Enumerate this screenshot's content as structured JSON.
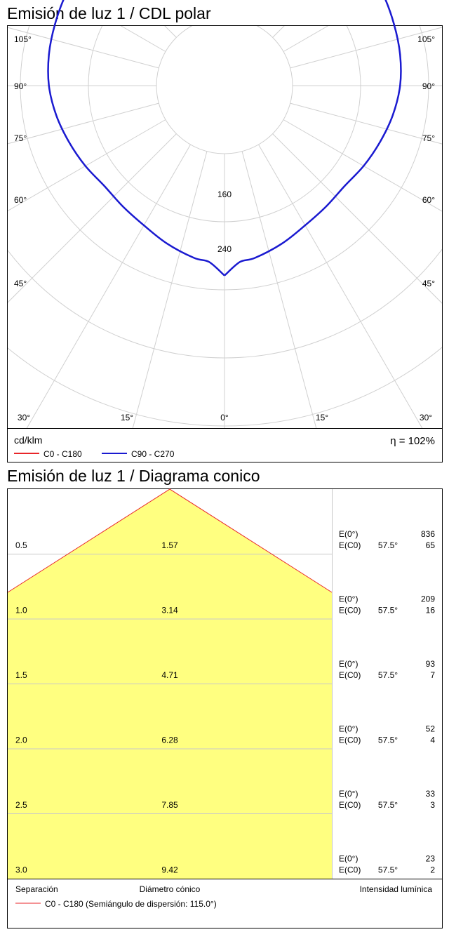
{
  "polar": {
    "title": "Emisión de luz 1 / CDL polar",
    "unit": "cd/klm",
    "efficiency": "η = 102%",
    "legend": [
      {
        "name": "C0 - C180",
        "color": "#e8262a"
      },
      {
        "name": "C90 - C270",
        "color": "#1a1ad0"
      }
    ]
  },
  "cone": {
    "title": "Emisión de luz 1 / Diagrama conico",
    "footer": {
      "separation": "Separación",
      "diameter": "Diámetro cónico",
      "intensity": "Intensidad lumínica",
      "legend": "C0 - C180 (Semiángulo de dispersión: 115.0°)"
    },
    "colors": {
      "fill": "#ffff80",
      "outline": "#e8262a",
      "grid": "#c8c8c8"
    },
    "rows": [
      {
        "distance": "0.5",
        "diameter": "1.57",
        "e0_label": "E(0°)",
        "ec0_label": "E(C0)",
        "angle": "57.5°",
        "e0": "836",
        "ec0": "65"
      },
      {
        "distance": "1.0",
        "diameter": "3.14",
        "e0_label": "E(0°)",
        "ec0_label": "E(C0)",
        "angle": "57.5°",
        "e0": "209",
        "ec0": "16"
      },
      {
        "distance": "1.5",
        "diameter": "4.71",
        "e0_label": "E(0°)",
        "ec0_label": "E(C0)",
        "angle": "57.5°",
        "e0": "93",
        "ec0": "7"
      },
      {
        "distance": "2.0",
        "diameter": "6.28",
        "e0_label": "E(0°)",
        "ec0_label": "E(C0)",
        "angle": "57.5°",
        "e0": "52",
        "ec0": "4"
      },
      {
        "distance": "2.5",
        "diameter": "7.85",
        "e0_label": "E(0°)",
        "ec0_label": "E(C0)",
        "angle": "57.5°",
        "e0": "33",
        "ec0": "3"
      },
      {
        "distance": "3.0",
        "diameter": "9.42",
        "e0_label": "E(0°)",
        "ec0_label": "E(C0)",
        "angle": "57.5°",
        "e0": "23",
        "ec0": "2"
      }
    ]
  },
  "chart_data": [
    {
      "type": "polar",
      "title": "Emisión de luz 1 / CDL polar",
      "unit": "cd/klm",
      "radial_ticks": [
        160,
        240
      ],
      "radial_max": 400,
      "angle_tick_labels": [
        "0°",
        "15°",
        "30°",
        "45°",
        "60°",
        "75°",
        "90°",
        "105°"
      ],
      "series": [
        {
          "name": "C0 - C180",
          "color": "#e8262a",
          "angles": [],
          "values": []
        },
        {
          "name": "C90 - C270",
          "color": "#1a1ad0",
          "angles": [
            0,
            5,
            10,
            20,
            30,
            40,
            50,
            60,
            70,
            80,
            90,
            100,
            110,
            120,
            130,
            140,
            150,
            160,
            170,
            175,
            180
          ],
          "values": [
            279,
            260,
            257,
            247,
            237,
            232,
            230,
            236,
            243,
            251,
            258,
            262,
            265,
            269,
            274,
            278,
            280,
            283,
            285,
            275,
            280
          ]
        }
      ],
      "efficiency": "η = 102%"
    },
    {
      "type": "table",
      "title": "Emisión de luz 1 / Diagrama conico",
      "columns": [
        "Separación",
        "Diámetro cónico",
        "E(0°)",
        "E(C0) 57.5°"
      ],
      "rows": [
        [
          "0.5",
          "1.57",
          836,
          65
        ],
        [
          "1.0",
          "3.14",
          209,
          16
        ],
        [
          "1.5",
          "4.71",
          93,
          7
        ],
        [
          "2.0",
          "6.28",
          52,
          4
        ],
        [
          "2.5",
          "7.85",
          33,
          3
        ],
        [
          "3.0",
          "9.42",
          23,
          2
        ]
      ],
      "half_angle": "115.0°"
    }
  ]
}
